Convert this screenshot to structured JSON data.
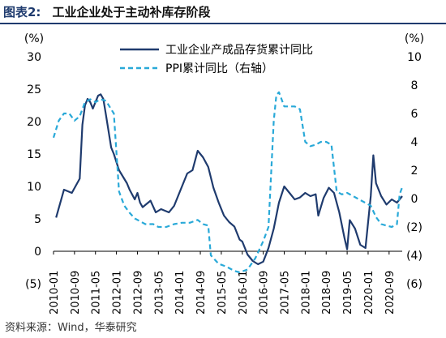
{
  "figure": {
    "label": "图表2:",
    "title": "工业企业处于主动补库存阶段",
    "source": "资料来源：Wind，华泰研究"
  },
  "chart_data": {
    "type": "line",
    "left_axis": {
      "unit_label": "(%)",
      "ticks": [
        "30",
        "25",
        "20",
        "15",
        "10",
        "5",
        "0",
        "(5)"
      ],
      "range": [
        -5,
        30
      ]
    },
    "right_axis": {
      "unit_label": "(%)",
      "ticks": [
        "10",
        "8",
        "6",
        "4",
        "2",
        "0",
        "(2)",
        "(4)",
        "(6)"
      ],
      "range": [
        -6,
        10
      ]
    },
    "x_ticks": [
      "2010-01",
      "2010-09",
      "2011-05",
      "2012-01",
      "2012-09",
      "2013-05",
      "2014-01",
      "2014-09",
      "2015-05",
      "2016-01",
      "2016-09",
      "2017-05",
      "2018-01",
      "2018-09",
      "2019-05",
      "2020-01",
      "2020-09"
    ],
    "x_start": "2010-01",
    "x_end": "2021-02",
    "legend": {
      "placement": "top-center",
      "items": [
        "工业企业产成品存货累计同比",
        "PPI累计同比（右轴）"
      ]
    },
    "series": [
      {
        "name": "工业企业产成品存货累计同比",
        "axis": "left",
        "color": "#1f3b6e",
        "style": "solid",
        "points": [
          [
            "2010-02",
            5.2
          ],
          [
            "2010-05",
            9.5
          ],
          [
            "2010-08",
            9.0
          ],
          [
            "2010-11",
            11.2
          ],
          [
            "2010-12",
            19.5
          ],
          [
            "2011-01",
            22.5
          ],
          [
            "2011-02",
            23.5
          ],
          [
            "2011-03",
            23.0
          ],
          [
            "2011-04",
            22.0
          ],
          [
            "2011-05",
            23.0
          ],
          [
            "2011-06",
            24.0
          ],
          [
            "2011-07",
            24.2
          ],
          [
            "2011-08",
            23.5
          ],
          [
            "2011-09",
            21.0
          ],
          [
            "2011-10",
            18.5
          ],
          [
            "2011-11",
            16.0
          ],
          [
            "2011-12",
            15.0
          ],
          [
            "2012-02",
            12.5
          ],
          [
            "2012-05",
            10.5
          ],
          [
            "2012-06",
            9.5
          ],
          [
            "2012-08",
            8.0
          ],
          [
            "2012-09",
            9.0
          ],
          [
            "2012-10",
            7.5
          ],
          [
            "2012-11",
            6.8
          ],
          [
            "2013-02",
            7.8
          ],
          [
            "2013-04",
            6.0
          ],
          [
            "2013-06",
            6.5
          ],
          [
            "2013-09",
            6.0
          ],
          [
            "2013-11",
            7.0
          ],
          [
            "2014-02",
            10.0
          ],
          [
            "2014-04",
            12.0
          ],
          [
            "2014-06",
            12.5
          ],
          [
            "2014-08",
            15.5
          ],
          [
            "2014-10",
            14.5
          ],
          [
            "2014-12",
            13.0
          ],
          [
            "2015-02",
            9.8
          ],
          [
            "2015-04",
            7.5
          ],
          [
            "2015-06",
            5.5
          ],
          [
            "2015-08",
            4.5
          ],
          [
            "2015-10",
            3.8
          ],
          [
            "2015-12",
            1.8
          ],
          [
            "2016-01",
            1.5
          ],
          [
            "2016-03",
            -0.5
          ],
          [
            "2016-05",
            -1.5
          ],
          [
            "2016-07",
            -2.0
          ],
          [
            "2016-09",
            -1.6
          ],
          [
            "2016-11",
            0.5
          ],
          [
            "2017-01",
            3.5
          ],
          [
            "2017-03",
            7.5
          ],
          [
            "2017-05",
            10.0
          ],
          [
            "2017-07",
            9.0
          ],
          [
            "2017-09",
            8.0
          ],
          [
            "2017-11",
            8.3
          ],
          [
            "2018-01",
            9.0
          ],
          [
            "2018-03",
            8.5
          ],
          [
            "2018-05",
            8.8
          ],
          [
            "2018-06",
            5.5
          ],
          [
            "2018-08",
            8.2
          ],
          [
            "2018-10",
            9.8
          ],
          [
            "2018-12",
            9.0
          ],
          [
            "2019-02",
            6.0
          ],
          [
            "2019-04",
            2.0
          ],
          [
            "2019-05",
            0.3
          ],
          [
            "2019-06",
            4.8
          ],
          [
            "2019-08",
            3.5
          ],
          [
            "2019-10",
            1.0
          ],
          [
            "2019-12",
            0.5
          ],
          [
            "2020-02",
            8.5
          ],
          [
            "2020-03",
            14.8
          ],
          [
            "2020-04",
            10.5
          ],
          [
            "2020-06",
            8.5
          ],
          [
            "2020-08",
            7.2
          ],
          [
            "2020-10",
            8.0
          ],
          [
            "2020-12",
            7.5
          ],
          [
            "2021-02",
            8.5
          ]
        ]
      },
      {
        "name": "PPI累计同比（右轴）",
        "axis": "right",
        "color": "#29a9d8",
        "style": "dashed",
        "points": [
          [
            "2010-01",
            4.3
          ],
          [
            "2010-03",
            5.5
          ],
          [
            "2010-05",
            6.0
          ],
          [
            "2010-07",
            6.0
          ],
          [
            "2010-09",
            5.5
          ],
          [
            "2010-11",
            5.8
          ],
          [
            "2011-01",
            6.8
          ],
          [
            "2011-03",
            7.0
          ],
          [
            "2011-05",
            6.8
          ],
          [
            "2011-07",
            7.0
          ],
          [
            "2011-09",
            6.9
          ],
          [
            "2011-11",
            6.3
          ],
          [
            "2011-12",
            6.0
          ],
          [
            "2012-02",
            0.5
          ],
          [
            "2012-04",
            -0.5
          ],
          [
            "2012-06",
            -1.0
          ],
          [
            "2012-08",
            -1.4
          ],
          [
            "2012-10",
            -1.6
          ],
          [
            "2012-12",
            -1.8
          ],
          [
            "2013-03",
            -1.8
          ],
          [
            "2013-05",
            -2.0
          ],
          [
            "2013-08",
            -2.0
          ],
          [
            "2013-11",
            -1.8
          ],
          [
            "2014-02",
            -1.7
          ],
          [
            "2014-05",
            -1.7
          ],
          [
            "2014-08",
            -1.5
          ],
          [
            "2014-10",
            -1.8
          ],
          [
            "2014-12",
            -1.9
          ],
          [
            "2015-01",
            -4.0
          ],
          [
            "2015-04",
            -4.6
          ],
          [
            "2015-07",
            -4.8
          ],
          [
            "2015-10",
            -5.1
          ],
          [
            "2015-12",
            -5.2
          ],
          [
            "2016-03",
            -5.0
          ],
          [
            "2016-06",
            -4.2
          ],
          [
            "2016-09",
            -3.0
          ],
          [
            "2016-11",
            -2.0
          ],
          [
            "2017-01",
            5.5
          ],
          [
            "2017-02",
            7.3
          ],
          [
            "2017-03",
            7.5
          ],
          [
            "2017-05",
            6.5
          ],
          [
            "2017-07",
            6.5
          ],
          [
            "2017-09",
            6.5
          ],
          [
            "2017-11",
            6.3
          ],
          [
            "2018-01",
            4.0
          ],
          [
            "2018-03",
            3.7
          ],
          [
            "2018-05",
            3.8
          ],
          [
            "2018-07",
            4.0
          ],
          [
            "2018-09",
            4.0
          ],
          [
            "2018-11",
            3.8
          ],
          [
            "2019-01",
            0.5
          ],
          [
            "2019-03",
            0.3
          ],
          [
            "2019-05",
            0.4
          ],
          [
            "2019-07",
            0.2
          ],
          [
            "2019-09",
            0.0
          ],
          [
            "2019-12",
            -0.3
          ],
          [
            "2020-02",
            -0.5
          ],
          [
            "2020-04",
            -1.3
          ],
          [
            "2020-06",
            -1.8
          ],
          [
            "2020-08",
            -1.9
          ],
          [
            "2020-10",
            -2.0
          ],
          [
            "2020-12",
            -1.8
          ],
          [
            "2021-01",
            0.3
          ],
          [
            "2021-02",
            0.8
          ]
        ]
      }
    ]
  }
}
